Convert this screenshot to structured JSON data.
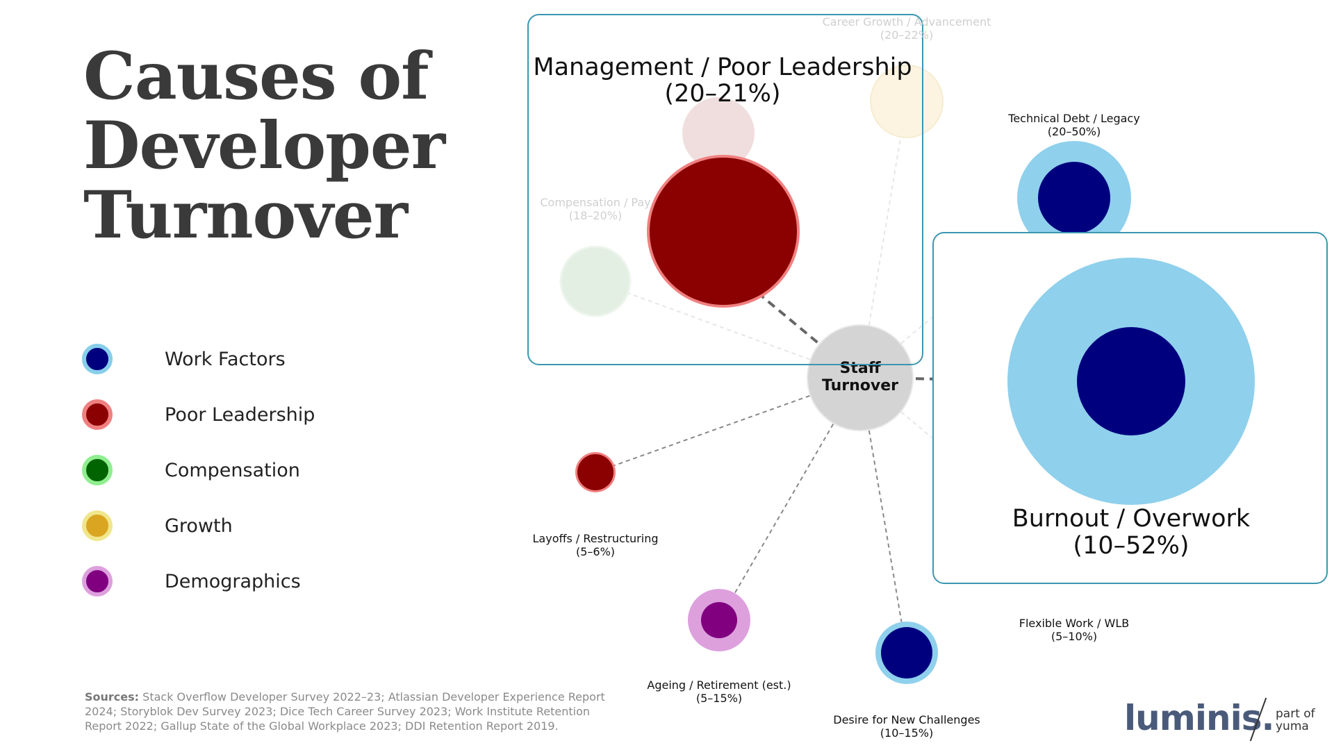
{
  "title": {
    "line1": "Causes of",
    "line2": "Developer",
    "line3": "Turnover"
  },
  "legend": [
    {
      "label": "Work Factors",
      "fill": "#00007f",
      "ring": "#87ceeb"
    },
    {
      "label": "Poor Leadership",
      "fill": "#8b0000",
      "ring": "#f08080"
    },
    {
      "label": "Compensation",
      "fill": "#006400",
      "ring": "#90ee90"
    },
    {
      "label": "Growth",
      "fill": "#daa520",
      "ring": "#f0e68c"
    },
    {
      "label": "Demographics",
      "fill": "#800080",
      "ring": "#dda0dd"
    }
  ],
  "hub": {
    "line1": "Staff",
    "line2": "Turnover"
  },
  "causes": [
    {
      "name": "Management / Poor Leadership",
      "range": "(20–21%)",
      "category": "Poor Leadership",
      "highlight": true
    },
    {
      "name": "Career Growth / Advancement",
      "range": "(20–22%)",
      "category": "Growth",
      "highlight": false,
      "faded": true
    },
    {
      "name": "Technical Debt / Legacy",
      "range": "(20–50%)",
      "category": "Work Factors",
      "highlight": false
    },
    {
      "name": "Burnout / Overwork",
      "range": "(10–52%)",
      "category": "Work Factors",
      "highlight": true
    },
    {
      "name": "Flexible Work / WLB",
      "range": "(5–10%)",
      "category": "Work Factors",
      "highlight": false,
      "faded": true
    },
    {
      "name": "Desire for New Challenges",
      "range": "(10–15%)",
      "category": "Work Factors",
      "highlight": false
    },
    {
      "name": "Ageing / Retirement (est.)",
      "range": "(5–15%)",
      "category": "Demographics",
      "highlight": false
    },
    {
      "name": "Layoffs / Restructuring",
      "range": "(5–6%)",
      "category": "Poor Leadership",
      "highlight": false
    },
    {
      "name": "Compensation / Pay",
      "range": "(18–20%)",
      "category": "Compensation",
      "highlight": false,
      "faded": true
    }
  ],
  "sources": {
    "label": "Sources:",
    "text": "Stack Overflow Developer Survey 2022–23; Atlassian Developer Experience Report 2024; Storyblok Dev Survey 2023; Dice Tech Career Survey 2023; Work Institute Retention Report 2022; Gallup State of the Global Workplace 2023; DDI Retention Report 2019."
  },
  "brand": {
    "name": "luminis.",
    "sub1": "part of",
    "sub2": "yuma"
  }
}
